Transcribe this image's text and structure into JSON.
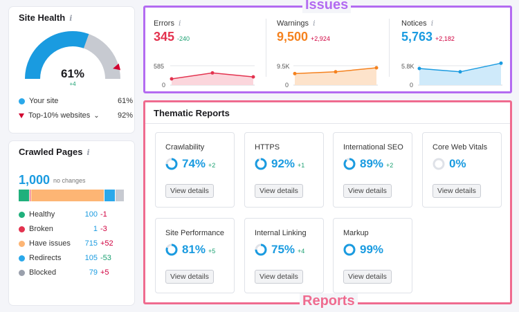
{
  "site_health": {
    "title": "Site Health",
    "info": "i",
    "percent": "61%",
    "change": "+4",
    "gauge_fraction": 0.61,
    "top10_fraction": 0.92,
    "legend": [
      {
        "label": "Your site",
        "value": "61%"
      },
      {
        "label": "Top-10% websites",
        "value": "92%"
      }
    ],
    "colors": {
      "fill": "#1a9be0",
      "track": "#c7cad1",
      "marker": "#d1002f"
    }
  },
  "crawled": {
    "title": "Crawled Pages",
    "info": "i",
    "total": "1,000",
    "note": "no changes",
    "bar": [
      {
        "name": "healthy",
        "value": 100,
        "color": "#20b07c"
      },
      {
        "name": "broken",
        "value": 1,
        "color": "#e3334f"
      },
      {
        "name": "have-issues",
        "value": 715,
        "color": "#fdb574"
      },
      {
        "name": "redirects",
        "value": 105,
        "color": "#2aa8ea"
      },
      {
        "name": "blocked",
        "value": 79,
        "color": "#c7cad1"
      }
    ],
    "rows": [
      {
        "label": "Healthy",
        "count": "100",
        "change": "-1",
        "color": "#20b07c"
      },
      {
        "label": "Broken",
        "count": "1",
        "change": "-3",
        "color": "#e3334f"
      },
      {
        "label": "Have issues",
        "count": "715",
        "change": "+52",
        "color": "#fdb574"
      },
      {
        "label": "Redirects",
        "count": "105",
        "change": "-53",
        "color": "#2aa8ea"
      },
      {
        "label": "Blocked",
        "count": "79",
        "change": "+5",
        "color": "#9aa0ac"
      }
    ]
  },
  "issues": {
    "label": "Issues",
    "items": [
      {
        "name": "Errors",
        "info": "i",
        "value": "345",
        "change": "-240",
        "change_color": "#1aa071",
        "color": "#e3334f",
        "fill": "#fbd6dc",
        "ytop": "585",
        "ybottom": "0",
        "points": [
          0.28,
          0.55,
          0.37
        ]
      },
      {
        "name": "Warnings",
        "info": "i",
        "value": "9,500",
        "change": "+2,924",
        "change_color": "#d0003f",
        "color": "#f5821f",
        "fill": "#fde3cb",
        "ytop": "9.5K",
        "ybottom": "0",
        "points": [
          0.52,
          0.6,
          0.78
        ]
      },
      {
        "name": "Notices",
        "info": "i",
        "value": "5,763",
        "change": "+2,182",
        "change_color": "#d0003f",
        "color": "#1a9be0",
        "fill": "#cfeafa",
        "ytop": "5.8K",
        "ybottom": "0",
        "points": [
          0.75,
          0.6,
          0.99
        ]
      }
    ]
  },
  "reports": {
    "label": "Reports",
    "title": "Thematic Reports",
    "button_label": "View details",
    "items": [
      {
        "name": "Crawlability",
        "value": "74%",
        "change": "+2",
        "fraction": 0.74
      },
      {
        "name": "HTTPS",
        "value": "92%",
        "change": "+1",
        "fraction": 0.92
      },
      {
        "name": "International SEO",
        "value": "89%",
        "change": "+2",
        "fraction": 0.89
      },
      {
        "name": "Core Web Vitals",
        "value": "0%",
        "change": "",
        "fraction": 0
      },
      {
        "name": "Site Performance",
        "value": "81%",
        "change": "+5",
        "fraction": 0.81
      },
      {
        "name": "Internal Linking",
        "value": "75%",
        "change": "+4",
        "fraction": 0.75
      },
      {
        "name": "Markup",
        "value": "99%",
        "change": "",
        "fraction": 0.99
      }
    ]
  }
}
